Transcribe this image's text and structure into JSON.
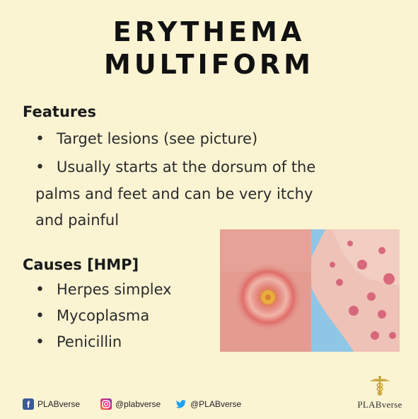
{
  "title": {
    "line1": "ERYTHEMA",
    "line2": "MULTIFORM"
  },
  "features": {
    "heading": "Features",
    "bullets": [
      "Target lesions (see picture)",
      "Usually starts at the dorsum of the"
    ],
    "continuation": [
      "palms and feet and can be very itchy",
      "and painful"
    ]
  },
  "causes": {
    "heading": "Causes [HMP]",
    "bullets": [
      "Herpes simplex",
      "Mycoplasma",
      "Penicillin"
    ]
  },
  "bullet_symbol": "•",
  "footer": {
    "facebook": "PLABverse",
    "instagram": "@plabverse",
    "twitter": "@PLABverse"
  },
  "brand": "PLABverse",
  "colors": {
    "background": "#faf4d3",
    "facebook": "#3b5998",
    "instagram": "#c13584",
    "twitter": "#1da1f2",
    "brand_gold": "#c9a23a"
  },
  "icons": [
    "facebook-icon",
    "instagram-icon",
    "twitter-icon",
    "caduceus-icon"
  ]
}
